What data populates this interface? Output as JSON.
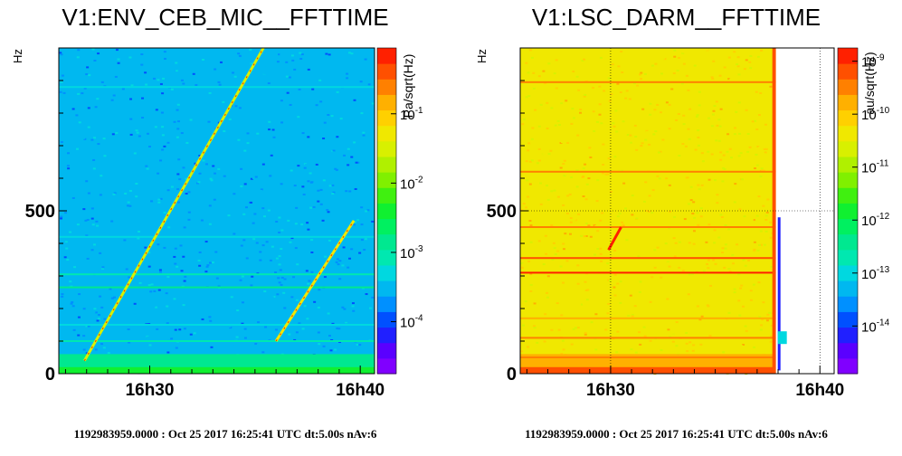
{
  "colors": {
    "palette": [
      "#8000ff",
      "#5a00ff",
      "#2020ff",
      "#0050ff",
      "#0090ff",
      "#00b8f0",
      "#00d8e0",
      "#00e8b0",
      "#00e890",
      "#00f060",
      "#10f030",
      "#40f010",
      "#80f000",
      "#b0f000",
      "#d8f000",
      "#f0e800",
      "#ffd000",
      "#ffb000",
      "#ff8000",
      "#ff5000",
      "#ff2000"
    ]
  },
  "chart_data": [
    {
      "type": "heatmap",
      "title": "V1:ENV_CEB_MIC__FFTTIME",
      "ylabel": "Hz",
      "ylim": [
        0,
        1000
      ],
      "xlim_minutes": [
        25.68,
        40.68
      ],
      "xticks": [
        {
          "minute": 30,
          "label": "16h30"
        },
        {
          "minute": 40,
          "label": "16h40"
        }
      ],
      "yticks": [
        {
          "value": 0,
          "label": "0"
        },
        {
          "value": 500,
          "label": "500"
        }
      ],
      "colorbar": {
        "label": "Pa/sqrt(Hz)",
        "scale": "log",
        "range_log10": [
          -4.75,
          -0.05
        ],
        "ticks": [
          {
            "log10": -1,
            "label": "10",
            "exp": "-1"
          },
          {
            "log10": -2,
            "label": "10",
            "exp": "-2"
          },
          {
            "log10": -3,
            "label": "10",
            "exp": "-3"
          },
          {
            "log10": -4,
            "label": "10",
            "exp": "-4"
          }
        ]
      },
      "background_log10": -3.6,
      "low_freq_log10": -2.4,
      "horizontal_lines": [
        {
          "freq": 50,
          "log10": -2.9
        },
        {
          "freq": 100,
          "log10": -3.0
        },
        {
          "freq": 150,
          "log10": -3.2
        },
        {
          "freq": 265,
          "log10": -2.9
        },
        {
          "freq": 305,
          "log10": -3.1
        },
        {
          "freq": 420,
          "log10": -3.3
        },
        {
          "freq": 880,
          "log10": -3.3
        }
      ],
      "chirps": [
        {
          "start_min": 26.9,
          "start_freq": 40,
          "end_min": 35.4,
          "end_freq": 1000,
          "log10": -1.6
        },
        {
          "start_min": 36.0,
          "start_freq": 100,
          "end_min": 39.7,
          "end_freq": 470,
          "log10": -1.2
        }
      ],
      "footer": "1192983959.0000 : Oct 25 2017 16:25:41 UTC dt:5.00s nAv:6"
    },
    {
      "type": "heatmap",
      "title": "V1:LSC_DARM__FFTTIME",
      "ylabel": "Hz",
      "ylim": [
        0,
        1000
      ],
      "xlim_minutes": [
        25.68,
        40.68
      ],
      "xticks": [
        {
          "minute": 30,
          "label": "16h30"
        },
        {
          "minute": 40,
          "label": "16h40"
        }
      ],
      "yticks": [
        {
          "value": 0,
          "label": "0"
        },
        {
          "value": 500,
          "label": "500"
        }
      ],
      "grid": true,
      "data_end_minute": 37.9,
      "colorbar": {
        "label": "au/sqrt(Hz)",
        "scale": "log",
        "range_log10": [
          -14.9,
          -8.75
        ],
        "ticks": [
          {
            "log10": -9,
            "label": "10",
            "exp": "-9"
          },
          {
            "log10": -10,
            "label": "10",
            "exp": "-10"
          },
          {
            "log10": -11,
            "label": "10",
            "exp": "-11"
          },
          {
            "log10": -12,
            "label": "10",
            "exp": "-12"
          },
          {
            "log10": -13,
            "label": "10",
            "exp": "-13"
          },
          {
            "log10": -14,
            "label": "10",
            "exp": "-14"
          }
        ]
      },
      "background_log10": -10.3,
      "low_freq_log10": -9.3,
      "horizontal_lines": [
        {
          "freq": 50,
          "log10": -9.5
        },
        {
          "freq": 110,
          "log10": -9.6
        },
        {
          "freq": 170,
          "log10": -9.8
        },
        {
          "freq": 310,
          "log10": -8.9
        },
        {
          "freq": 355,
          "log10": -9.3
        },
        {
          "freq": 450,
          "log10": -9.5
        },
        {
          "freq": 620,
          "log10": -9.6
        },
        {
          "freq": 895,
          "log10": -9.4
        }
      ],
      "chirps": [
        {
          "start_min": 29.9,
          "start_freq": 380,
          "end_min": 30.5,
          "end_freq": 450,
          "log10": -9.0
        }
      ],
      "footer": "1192983959.0000 : Oct 25 2017 16:25:41 UTC dt:5.00s nAv:6"
    }
  ]
}
